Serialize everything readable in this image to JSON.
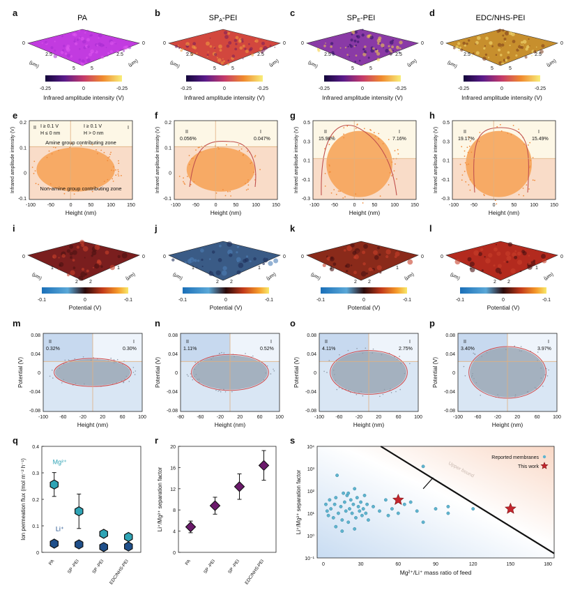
{
  "panel_letters": [
    "a",
    "b",
    "c",
    "d",
    "e",
    "f",
    "g",
    "h",
    "i",
    "j",
    "k",
    "l",
    "m",
    "n",
    "o",
    "p",
    "q",
    "r",
    "s"
  ],
  "row1": {
    "titles": [
      "PA",
      "SP",
      "SP",
      "EDC/NHS-PEI"
    ],
    "title_subs": [
      "",
      "A",
      "E",
      ""
    ],
    "title_suffix": [
      "",
      "-PEI",
      "-PEI",
      ""
    ],
    "surface_colors": [
      "#c23be0",
      "#d2473e",
      "#8a3aa6",
      "#c78f2d"
    ],
    "colorbar_ticks": [
      "-0.25",
      "0",
      "-0.25"
    ],
    "colorbar_label": "Infrared amplitude intensity (V)",
    "axis_ticks": [
      "0",
      "2.5",
      "5",
      "5",
      "2.5",
      "0"
    ],
    "axis_unit": "(μm)"
  },
  "row2": {
    "ylabel": "Infrared amplitude intensity (V)",
    "xlabel": "Height (nm)",
    "e_text": {
      "q2_roman": "II",
      "q1_roman": "I",
      "q2_l1": "I  ≥ 0.1 V",
      "q2_l2": "H ≤ 0 nm",
      "q1_l1": "I  ≥ 0.1 V",
      "q1_l2": "H > 0 nm",
      "zone_top": "Amine group contributing zone",
      "zone_bottom": "Non-amine group contributing zone"
    },
    "panels": [
      {
        "letter": "e",
        "q2": "",
        "q1": "",
        "yticks": [
          "0.2",
          "0.1",
          "0",
          "-0.1"
        ],
        "xticks": [
          "-100",
          "-50",
          "0",
          "50",
          "100",
          "150"
        ]
      },
      {
        "letter": "f",
        "q2": "0.056%",
        "q1": "0.047%",
        "yticks": [
          "0.2",
          "0.1",
          "0",
          "-0.1"
        ],
        "xticks": [
          "-100",
          "-50",
          "0",
          "50",
          "100",
          "150"
        ]
      },
      {
        "letter": "g",
        "q2": "15.98%",
        "q1": "7.16%",
        "yticks": [
          "0.5",
          "0.3",
          "0.1",
          "-0.1",
          "-0.3"
        ],
        "xticks": [
          "-100",
          "-50",
          "0",
          "50",
          "100",
          "150"
        ]
      },
      {
        "letter": "h",
        "q2": "19.17%",
        "q1": "15.49%",
        "yticks": [
          "0.5",
          "0.3",
          "0.1",
          "-0.1",
          "-0.3"
        ],
        "xticks": [
          "-100",
          "-50",
          "0",
          "50",
          "100",
          "150"
        ]
      }
    ]
  },
  "row3": {
    "colorbar_ticks": [
      "-0.1",
      "0",
      "-0.1"
    ],
    "colorbar_label": "Potential (V)",
    "axis_ticks": [
      "0",
      "1",
      "2",
      "2",
      "1",
      "0"
    ],
    "axis_unit": "(μm)",
    "surface_colors": [
      "#7a1e1e",
      "#3a5b86",
      "#8a2a1a",
      "#b32a1e"
    ]
  },
  "row4": {
    "ylabel": "Potential (V)",
    "xlabel": "Height (nm)",
    "yticks": [
      "0.08",
      "0.04",
      "0",
      "-0.04",
      "-0.08"
    ],
    "panels": [
      {
        "letter": "m",
        "q2": "0.32%",
        "q1": "0.30%",
        "xticks": [
          "-100",
          "-60",
          "-20",
          "20",
          "60",
          "100"
        ]
      },
      {
        "letter": "n",
        "q2": "1.11%",
        "q1": "0.52%",
        "xticks": [
          "-80",
          "-60",
          "-20",
          "20",
          "60",
          "100"
        ]
      },
      {
        "letter": "o",
        "q2": "4.11%",
        "q1": "2.75%",
        "xticks": [
          "-100",
          "-60",
          "-20",
          "20",
          "60",
          "100"
        ]
      },
      {
        "letter": "p",
        "q2": "3.40%",
        "q1": "3.97%",
        "xticks": [
          "-100",
          "-60",
          "-20",
          "20",
          "60",
          "100"
        ]
      }
    ],
    "roman_left": "II",
    "roman_right": "I"
  },
  "chart_data": [
    {
      "type": "scatter",
      "panel": "q",
      "ylabel": "Ion permeation flux (mol m⁻² h⁻¹)",
      "categories": [
        "PA",
        "SP -PEI",
        "SP -PEI",
        "EDC/NHS-PEI"
      ],
      "ylim": [
        0,
        0.4
      ],
      "yticks": [
        "0",
        "0.1",
        "0.2",
        "0.3",
        "0.4"
      ],
      "series": [
        {
          "name": "Mg²⁺",
          "color": "#2fa4b5",
          "values": [
            0.256,
            0.155,
            0.07,
            0.058
          ],
          "err": [
            0.045,
            0.065,
            0.008,
            0.008
          ]
        },
        {
          "name": "Li⁺",
          "color": "#1f4f8a",
          "values": [
            0.033,
            0.03,
            0.02,
            0.022
          ],
          "err": [
            0.008,
            0.008,
            0.006,
            0.008
          ]
        }
      ]
    },
    {
      "type": "scatter",
      "panel": "r",
      "ylabel": "Li⁺/Mg²⁺ separation factor",
      "categories": [
        "PA",
        "SP -PEI",
        "SP -PEI",
        "EDC/NHS-PEI"
      ],
      "ylim": [
        0,
        20
      ],
      "yticks": [
        "0",
        "4",
        "8",
        "12",
        "16",
        "20"
      ],
      "series": [
        {
          "name": "",
          "color": "#6b1a6b",
          "values": [
            4.8,
            8.8,
            12.4,
            16.4
          ],
          "err": [
            1.1,
            1.6,
            2.4,
            2.8
          ]
        }
      ]
    },
    {
      "type": "scatter",
      "panel": "s",
      "ylabel": "Li⁺/Mg²⁺ separation factor",
      "xlabel": "Mg²⁺/Li⁺ mass ratio of feed",
      "xlim": [
        -5,
        185
      ],
      "ylim_log": [
        -1,
        4
      ],
      "xticks": [
        "0",
        "30",
        "60",
        "90",
        "120",
        "150",
        "180"
      ],
      "yticks": [
        "10⁻¹",
        "10⁰",
        "10¹",
        "10²",
        "10³",
        "10⁴"
      ],
      "legend": [
        "Reported membranes",
        "This work"
      ],
      "upper_bound_label": "Upper bound",
      "reported_log": [
        [
          2,
          1.4
        ],
        [
          3,
          1.1
        ],
        [
          4,
          0.9
        ],
        [
          5,
          1.6
        ],
        [
          6,
          1.2
        ],
        [
          8,
          0.8
        ],
        [
          9,
          1.4
        ],
        [
          10,
          1.7
        ],
        [
          11,
          2.7
        ],
        [
          12,
          1.0
        ],
        [
          14,
          1.3
        ],
        [
          15,
          0.7
        ],
        [
          16,
          1.9
        ],
        [
          17,
          1.5
        ],
        [
          18,
          1.1
        ],
        [
          19,
          1.8
        ],
        [
          20,
          0.6
        ],
        [
          21,
          1.2
        ],
        [
          22,
          1.6
        ],
        [
          23,
          1.0
        ],
        [
          24,
          1.4
        ],
        [
          25,
          2.1
        ],
        [
          26,
          0.8
        ],
        [
          27,
          1.7
        ],
        [
          28,
          1.3
        ],
        [
          29,
          1.1
        ],
        [
          30,
          1.5
        ],
        [
          31,
          0.9
        ],
        [
          32,
          1.2
        ],
        [
          33,
          1.8
        ],
        [
          34,
          1.0
        ],
        [
          35,
          1.4
        ],
        [
          36,
          0.7
        ],
        [
          40,
          1.3
        ],
        [
          45,
          1.1
        ],
        [
          50,
          1.6
        ],
        [
          52,
          0.9
        ],
        [
          55,
          1.2
        ],
        [
          60,
          1.0
        ],
        [
          65,
          1.4
        ],
        [
          70,
          1.5
        ],
        [
          75,
          1.1
        ],
        [
          80,
          0.6
        ],
        [
          80,
          3.1
        ],
        [
          90,
          1.2
        ],
        [
          100,
          1.0
        ],
        [
          100,
          1.3
        ],
        [
          120,
          1.2
        ],
        [
          10,
          0.4
        ],
        [
          15,
          0.2
        ],
        [
          20,
          1.9
        ],
        [
          25,
          0.3
        ]
      ],
      "this_work_log": [
        [
          60,
          1.6
        ],
        [
          150,
          1.2
        ]
      ]
    }
  ]
}
